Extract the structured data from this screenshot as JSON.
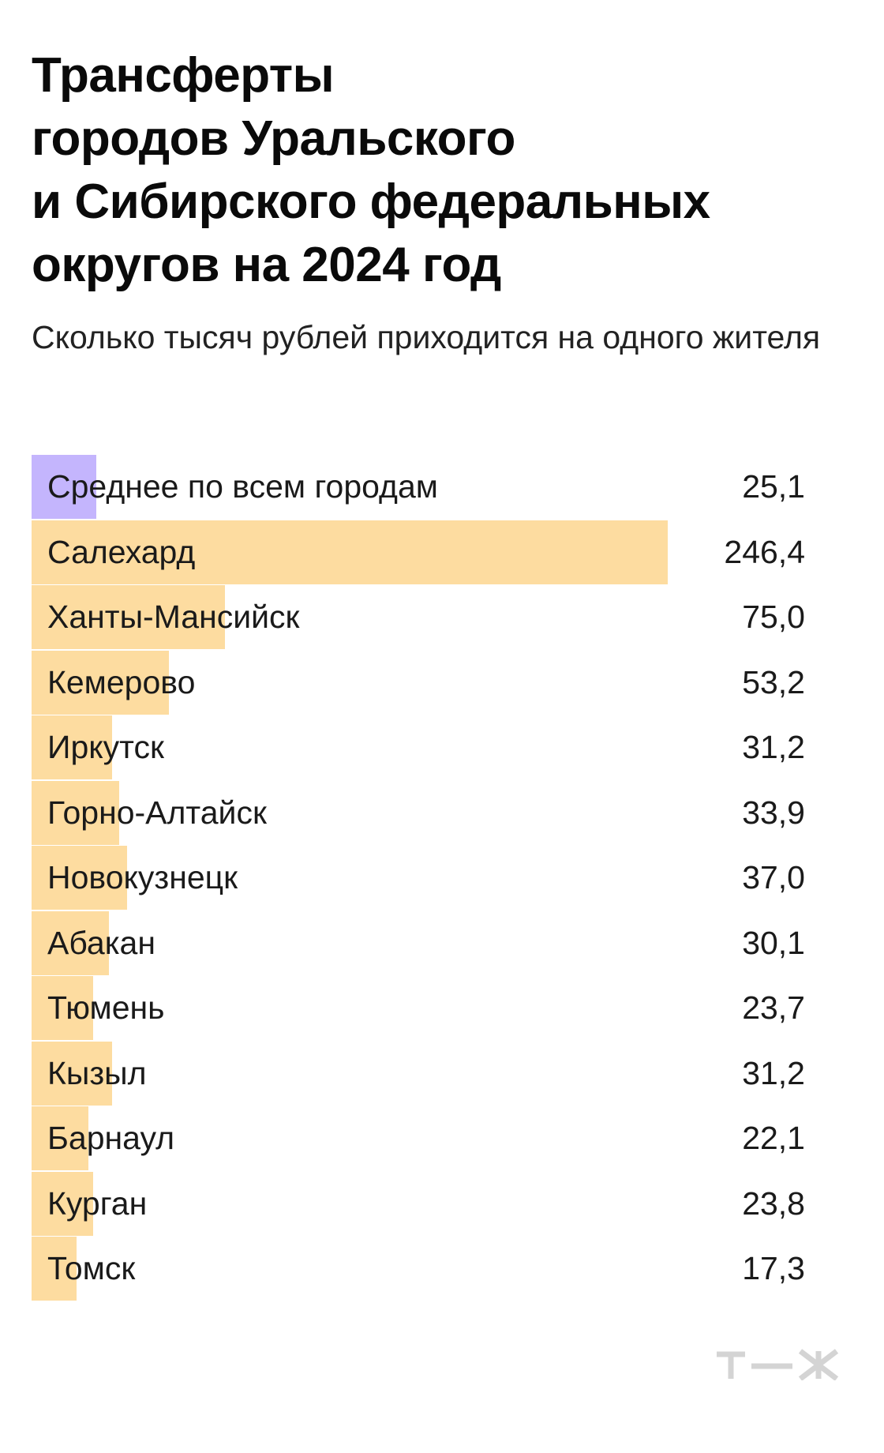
{
  "title": "Трансферты\nгородов Уральского\nи Сибирского федеральных\nокругов на 2024 год",
  "subtitle": "Сколько тысяч рублей приходится на одного жителя",
  "colors": {
    "average_bar": "#c4b5fd",
    "city_bar": "#fddca0",
    "logo": "#d4d4d4"
  },
  "logo_text": "т—ж",
  "chart_data": {
    "type": "bar",
    "orientation": "horizontal",
    "title": "Трансферты городов Уральского и Сибирского федеральных округов на 2024 год",
    "subtitle": "Сколько тысяч рублей приходится на одного жителя",
    "xlim": [
      0,
      246.4
    ],
    "categories": [
      "Среднее по всем городам",
      "Салехард",
      "Ханты-Мансийск",
      "Кемерово",
      "Иркутск",
      "Горно-Алтайск",
      "Новокузнецк",
      "Абакан",
      "Тюмень",
      "Кызыл",
      "Барнаул",
      "Курган",
      "Томск"
    ],
    "values": [
      25.1,
      246.4,
      75.0,
      53.2,
      31.2,
      33.9,
      37.0,
      30.1,
      23.7,
      31.2,
      22.1,
      23.8,
      17.3
    ],
    "value_labels": [
      "25,1",
      "246,4",
      "75,0",
      "53,2",
      "31,2",
      "33,9",
      "37,0",
      "30,1",
      "23,7",
      "31,2",
      "22,1",
      "23,8",
      "17,3"
    ],
    "highlight": [
      "average",
      "city",
      "city",
      "city",
      "city",
      "city",
      "city",
      "city",
      "city",
      "city",
      "city",
      "city",
      "city"
    ]
  }
}
